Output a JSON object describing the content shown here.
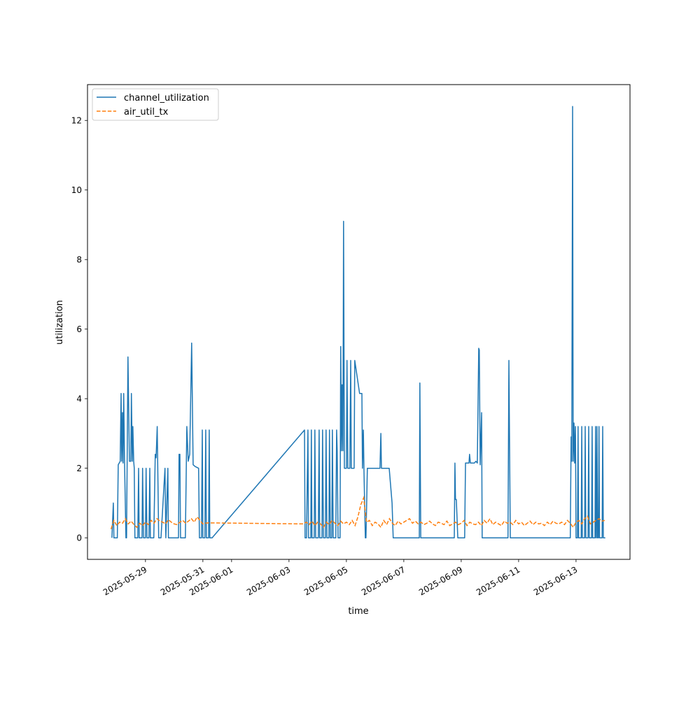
{
  "chart_data": {
    "type": "line",
    "title": "",
    "xlabel": "time",
    "ylabel": "utilization",
    "x_units": "days since 2025-05-29",
    "xlim": [
      -2.02,
      16.88
    ],
    "ylim": [
      -0.62,
      13.03
    ],
    "grid": false,
    "legend_position": "top-left",
    "x_ticks": [
      {
        "value": 0,
        "label": "2025-05-29"
      },
      {
        "value": 2,
        "label": "2025-05-31"
      },
      {
        "value": 3,
        "label": "2025-06-01"
      },
      {
        "value": 5,
        "label": "2025-06-03"
      },
      {
        "value": 7,
        "label": "2025-06-05"
      },
      {
        "value": 9,
        "label": "2025-06-07"
      },
      {
        "value": 11,
        "label": "2025-06-09"
      },
      {
        "value": 13,
        "label": "2025-06-11"
      },
      {
        "value": 15,
        "label": "2025-06-13"
      }
    ],
    "y_ticks": [
      {
        "value": 0,
        "label": "0"
      },
      {
        "value": 2,
        "label": "2"
      },
      {
        "value": 4,
        "label": "4"
      },
      {
        "value": 6,
        "label": "6"
      },
      {
        "value": 8,
        "label": "8"
      },
      {
        "value": 10,
        "label": "10"
      },
      {
        "value": 12,
        "label": "12"
      }
    ],
    "series": [
      {
        "name": "channel_utilization",
        "color": "#1f77b4",
        "style": "solid",
        "points": [
          [
            -1.17,
            0
          ],
          [
            -1.12,
            1.0
          ],
          [
            -1.1,
            0
          ],
          [
            -0.98,
            0
          ],
          [
            -0.95,
            2.1
          ],
          [
            -0.88,
            2.2
          ],
          [
            -0.85,
            4.15
          ],
          [
            -0.83,
            2.2
          ],
          [
            -0.8,
            3.6
          ],
          [
            -0.78,
            2.15
          ],
          [
            -0.76,
            4.15
          ],
          [
            -0.73,
            2.2
          ],
          [
            -0.68,
            0
          ],
          [
            -0.66,
            0
          ],
          [
            -0.61,
            5.2
          ],
          [
            -0.56,
            2.2
          ],
          [
            -0.51,
            2.2
          ],
          [
            -0.49,
            4.15
          ],
          [
            -0.46,
            2.2
          ],
          [
            -0.44,
            3.2
          ],
          [
            -0.41,
            2.2
          ],
          [
            -0.39,
            2.0
          ],
          [
            -0.37,
            0
          ],
          [
            -0.27,
            0
          ],
          [
            -0.24,
            2.0
          ],
          [
            -0.22,
            0
          ],
          [
            -0.12,
            0
          ],
          [
            -0.1,
            2.0
          ],
          [
            -0.07,
            0
          ],
          [
            0,
            0
          ],
          [
            0.02,
            2.0
          ],
          [
            0.05,
            0
          ],
          [
            0.12,
            0
          ],
          [
            0.15,
            2.0
          ],
          [
            0.17,
            0
          ],
          [
            0.29,
            0
          ],
          [
            0.34,
            2.4
          ],
          [
            0.37,
            2.3
          ],
          [
            0.41,
            3.2
          ],
          [
            0.46,
            0
          ],
          [
            0.54,
            0
          ],
          [
            0.68,
            2.0
          ],
          [
            0.71,
            0
          ],
          [
            0.78,
            2.0
          ],
          [
            0.8,
            0
          ],
          [
            1.15,
            0
          ],
          [
            1.17,
            2.4
          ],
          [
            1.2,
            2.4
          ],
          [
            1.22,
            0
          ],
          [
            1.39,
            0
          ],
          [
            1.44,
            3.2
          ],
          [
            1.49,
            2.2
          ],
          [
            1.54,
            2.4
          ],
          [
            1.61,
            5.6
          ],
          [
            1.66,
            2.1
          ],
          [
            1.73,
            2.05
          ],
          [
            1.85,
            2.0
          ],
          [
            1.88,
            0
          ],
          [
            1.95,
            0
          ],
          [
            1.98,
            3.1
          ],
          [
            2.0,
            0
          ],
          [
            2.07,
            0
          ],
          [
            2.1,
            3.1
          ],
          [
            2.12,
            0
          ],
          [
            2.2,
            0
          ],
          [
            2.22,
            3.1
          ],
          [
            2.24,
            0
          ],
          [
            2.32,
            0
          ],
          [
            5.54,
            3.1
          ],
          [
            5.56,
            0
          ],
          [
            5.61,
            0
          ],
          [
            5.66,
            3.1
          ],
          [
            5.68,
            0
          ],
          [
            5.76,
            0
          ],
          [
            5.78,
            3.1
          ],
          [
            5.8,
            0
          ],
          [
            5.88,
            0
          ],
          [
            5.9,
            3.1
          ],
          [
            5.93,
            0
          ],
          [
            6.02,
            0
          ],
          [
            6.05,
            3.1
          ],
          [
            6.07,
            0
          ],
          [
            6.15,
            0
          ],
          [
            6.17,
            3.1
          ],
          [
            6.2,
            0
          ],
          [
            6.27,
            0
          ],
          [
            6.29,
            3.1
          ],
          [
            6.32,
            0
          ],
          [
            6.39,
            0
          ],
          [
            6.41,
            3.1
          ],
          [
            6.44,
            0
          ],
          [
            6.49,
            0
          ],
          [
            6.51,
            3.1
          ],
          [
            6.54,
            0
          ],
          [
            6.63,
            0
          ],
          [
            6.66,
            3.1
          ],
          [
            6.68,
            2.5
          ],
          [
            6.71,
            0
          ],
          [
            6.78,
            0
          ],
          [
            6.8,
            5.5
          ],
          [
            6.83,
            2.5
          ],
          [
            6.85,
            4.4
          ],
          [
            6.88,
            2.5
          ],
          [
            6.9,
            9.1
          ],
          [
            6.93,
            2.0
          ],
          [
            7.0,
            2.0
          ],
          [
            7.02,
            5.1
          ],
          [
            7.05,
            2.0
          ],
          [
            7.12,
            2.0
          ],
          [
            7.15,
            5.1
          ],
          [
            7.17,
            2.0
          ],
          [
            7.27,
            2.0
          ],
          [
            7.29,
            5.1
          ],
          [
            7.46,
            4.15
          ],
          [
            7.54,
            4.15
          ],
          [
            7.56,
            2.0
          ],
          [
            7.59,
            3.1
          ],
          [
            7.61,
            2.0
          ],
          [
            7.66,
            0
          ],
          [
            7.68,
            0
          ],
          [
            7.73,
            2.0
          ],
          [
            8.17,
            2.0
          ],
          [
            8.2,
            3.0
          ],
          [
            8.22,
            2.0
          ],
          [
            8.49,
            2.0
          ],
          [
            8.59,
            1.0
          ],
          [
            8.63,
            0
          ],
          [
            9.54,
            0
          ],
          [
            9.56,
            4.45
          ],
          [
            9.59,
            0
          ],
          [
            10.76,
            0
          ],
          [
            10.78,
            2.15
          ],
          [
            10.8,
            1.1
          ],
          [
            10.83,
            1.1
          ],
          [
            10.88,
            0
          ],
          [
            11.12,
            0
          ],
          [
            11.15,
            2.15
          ],
          [
            11.27,
            2.15
          ],
          [
            11.29,
            2.4
          ],
          [
            11.32,
            2.15
          ],
          [
            11.46,
            2.15
          ],
          [
            11.51,
            2.2
          ],
          [
            11.56,
            2.15
          ],
          [
            11.61,
            5.45
          ],
          [
            11.63,
            5.4
          ],
          [
            11.66,
            2.1
          ],
          [
            11.71,
            3.6
          ],
          [
            11.73,
            0
          ],
          [
            12.63,
            0
          ],
          [
            12.66,
            5.1
          ],
          [
            12.71,
            0
          ],
          [
            14.8,
            0
          ],
          [
            14.83,
            2.9
          ],
          [
            14.85,
            2.2
          ],
          [
            14.88,
            12.4
          ],
          [
            14.9,
            2.2
          ],
          [
            14.93,
            3.3
          ],
          [
            14.95,
            2.15
          ],
          [
            14.98,
            3.2
          ],
          [
            15.0,
            0
          ],
          [
            15.05,
            0
          ],
          [
            15.07,
            3.2
          ],
          [
            15.09,
            0
          ],
          [
            15.18,
            0
          ],
          [
            15.2,
            3.2
          ],
          [
            15.22,
            0
          ],
          [
            15.3,
            0
          ],
          [
            15.32,
            3.2
          ],
          [
            15.34,
            0
          ],
          [
            15.42,
            0
          ],
          [
            15.44,
            3.2
          ],
          [
            15.46,
            0
          ],
          [
            15.54,
            0
          ],
          [
            15.56,
            3.2
          ],
          [
            15.58,
            0
          ],
          [
            15.66,
            0
          ],
          [
            15.68,
            3.2
          ],
          [
            15.7,
            0
          ],
          [
            15.71,
            0
          ],
          [
            15.73,
            3.2
          ],
          [
            15.75,
            0
          ],
          [
            15.78,
            0
          ],
          [
            15.8,
            3.2
          ],
          [
            15.82,
            0
          ],
          [
            15.91,
            0
          ],
          [
            15.93,
            3.2
          ],
          [
            15.95,
            0
          ],
          [
            16.02,
            0
          ]
        ]
      },
      {
        "name": "air_util_tx",
        "color": "#ff7f0e",
        "style": "dashed",
        "segments": [
          {
            "start": -1.2,
            "step": 0.1,
            "values": [
              0.25,
              0.5,
              0.35,
              0.45,
              0.42,
              0.55,
              0.4,
              0.48,
              0.38,
              0.3,
              0.42,
              0.35,
              0.45,
              0.38,
              0.5,
              0.42,
              0.55,
              0.48,
              0.45,
              0.4,
              0.52,
              0.45,
              0.4,
              0.38,
              0.45,
              0.5,
              0.42,
              0.48,
              0.55,
              0.45,
              0.6,
              0.5,
              0.4,
              0.42,
              0.43
            ]
          },
          {
            "start": 5.5,
            "step": 0.1,
            "values": [
              0.4,
              0.45,
              0.38,
              0.48,
              0.35,
              0.45,
              0.4,
              0.3,
              0.45,
              0.38,
              0.5,
              0.42,
              0.35,
              0.48,
              0.4,
              0.45,
              0.38,
              0.5,
              0.35,
              0.6,
              0.95,
              1.15,
              0.45,
              0.5,
              0.35,
              0.45,
              0.4,
              0.3,
              0.5,
              0.38,
              0.55,
              0.42,
              0.35,
              0.48,
              0.4,
              0.45,
              0.5,
              0.55,
              0.42,
              0.48,
              0.4,
              0.45,
              0.38,
              0.42,
              0.48,
              0.4,
              0.35,
              0.45,
              0.42,
              0.38,
              0.48,
              0.35,
              0.4,
              0.45,
              0.38,
              0.42,
              0.5,
              0.35,
              0.45,
              0.4,
              0.38,
              0.45,
              0.35,
              0.5,
              0.42,
              0.55,
              0.38,
              0.45,
              0.4,
              0.35,
              0.48,
              0.42,
              0.45,
              0.38,
              0.5,
              0.4,
              0.45,
              0.35,
              0.42,
              0.48,
              0.38,
              0.45,
              0.4,
              0.42,
              0.35,
              0.45,
              0.38,
              0.48,
              0.42,
              0.4,
              0.45,
              0.38,
              0.5,
              0.42,
              0.3,
              0.45,
              0.5,
              0.4,
              0.55,
              0.62,
              0.4,
              0.45,
              0.5,
              0.55,
              0.48,
              0.5
            ]
          }
        ]
      }
    ]
  }
}
